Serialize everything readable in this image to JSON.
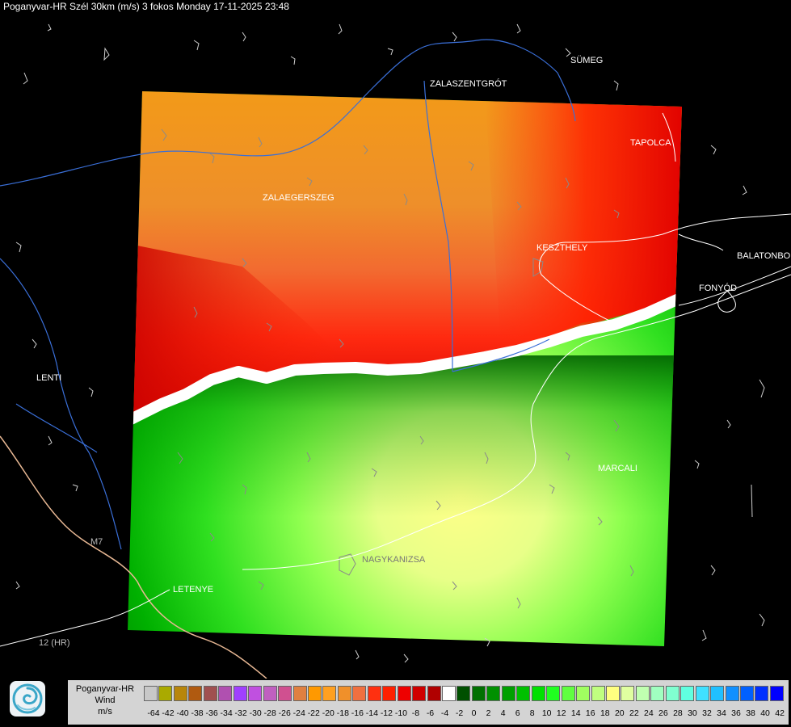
{
  "title": "Poganyvar-HR Szél 30km (m/s) 3 fokos Monday 17-11-2025 23:48",
  "legend": {
    "caption_line1": "Poganyvar-HR",
    "caption_line2": "Wind",
    "caption_line3": "m/s",
    "colors": [
      "#c8c8c8",
      "#aaaa00",
      "#b8860b",
      "#b05a10",
      "#a05050",
      "#b050b0",
      "#a040ff",
      "#c050e0",
      "#c060c0",
      "#d05090",
      "#e08040",
      "#ff9900",
      "#ffa020",
      "#f0902a",
      "#f07040",
      "#ff3010",
      "#ff2000",
      "#ee0000",
      "#d00000",
      "#b00000",
      "#ffffff",
      "#005000",
      "#007000",
      "#009000",
      "#00a000",
      "#00c000",
      "#00e000",
      "#20ff20",
      "#60ff40",
      "#a0ff60",
      "#c0ff80",
      "#ffff80",
      "#e0ffa0",
      "#c0ffb0",
      "#a0ffc0",
      "#80ffd0",
      "#60ffe0",
      "#40e0ff",
      "#20c0ff",
      "#1090ff",
      "#0060ff",
      "#0030ff",
      "#0000ff"
    ],
    "ticks": [
      "-64",
      "-42",
      "-40",
      "-38",
      "-36",
      "-34",
      "-32",
      "-30",
      "-28",
      "-26",
      "-24",
      "-22",
      "-20",
      "-18",
      "-16",
      "-14",
      "-12",
      "-10",
      "-8",
      "-6",
      "-4",
      "-2",
      "0",
      "2",
      "4",
      "6",
      "8",
      "10",
      "12",
      "14",
      "16",
      "18",
      "20",
      "22",
      "24",
      "26",
      "28",
      "30",
      "32",
      "34",
      "36",
      "38",
      "40",
      "42"
    ]
  },
  "cities": {
    "sumeg": "SÜMEG",
    "zalaszentgrot": "ZALASZENTGRÓT",
    "tapolca": "TAPOLCA",
    "zalaegerszeg": "ZALAEGERSZEG",
    "keszthely": "KESZTHELY",
    "balatonboglar": "BALATONBO",
    "fonyod": "FONYÓD",
    "lenti": "LENTI",
    "marcali": "MARCALI",
    "nagykanizsa": "NAGYKANIZSA",
    "letenye": "LETENYE"
  },
  "road_labels": {
    "r12": "12 (HR)",
    "m7": "M7"
  },
  "colors": {
    "background": "#000000",
    "river": "#3a6fd8",
    "border": "#e8b894",
    "road": "#ffffff",
    "outline": "#888888"
  }
}
